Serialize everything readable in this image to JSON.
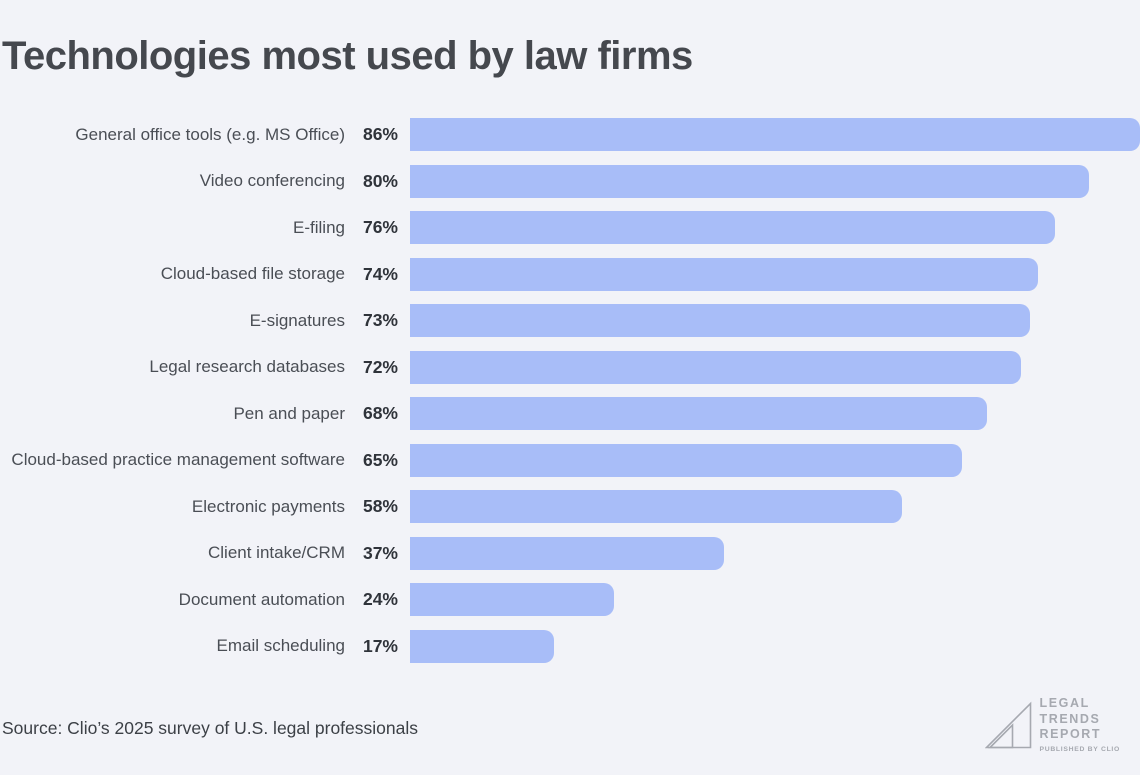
{
  "title": "Technologies most used by law firms",
  "source": "Source: Clio’s 2025 survey of U.S. legal professionals",
  "logo": {
    "line1": "LEGAL",
    "line2": "TRENDS",
    "line3": "REPORT",
    "tagline": "PUBLISHED BY CLIO"
  },
  "colors": {
    "background": "#f2f3f8",
    "bar": "#a8bdf8",
    "title": "#45484e",
    "label": "#4a4e55",
    "value": "#2f333a",
    "logo": "#a6a9b0"
  },
  "chart_data": {
    "type": "bar",
    "orientation": "horizontal",
    "title": "Technologies most used by law firms",
    "categories": [
      "General office tools (e.g. MS Office)",
      "Video conferencing",
      "E-filing",
      "Cloud-based file storage",
      "E-signatures",
      "Legal research databases",
      "Pen and paper",
      "Cloud-based practice management software",
      "Electronic payments",
      "Client intake/CRM",
      "Document automation",
      "Email scheduling"
    ],
    "values": [
      86,
      80,
      76,
      74,
      73,
      72,
      68,
      65,
      58,
      37,
      24,
      17
    ],
    "value_suffix": "%",
    "xlim": [
      0,
      86
    ],
    "grid": false,
    "legend": false,
    "bar_labels": "outside-left"
  }
}
